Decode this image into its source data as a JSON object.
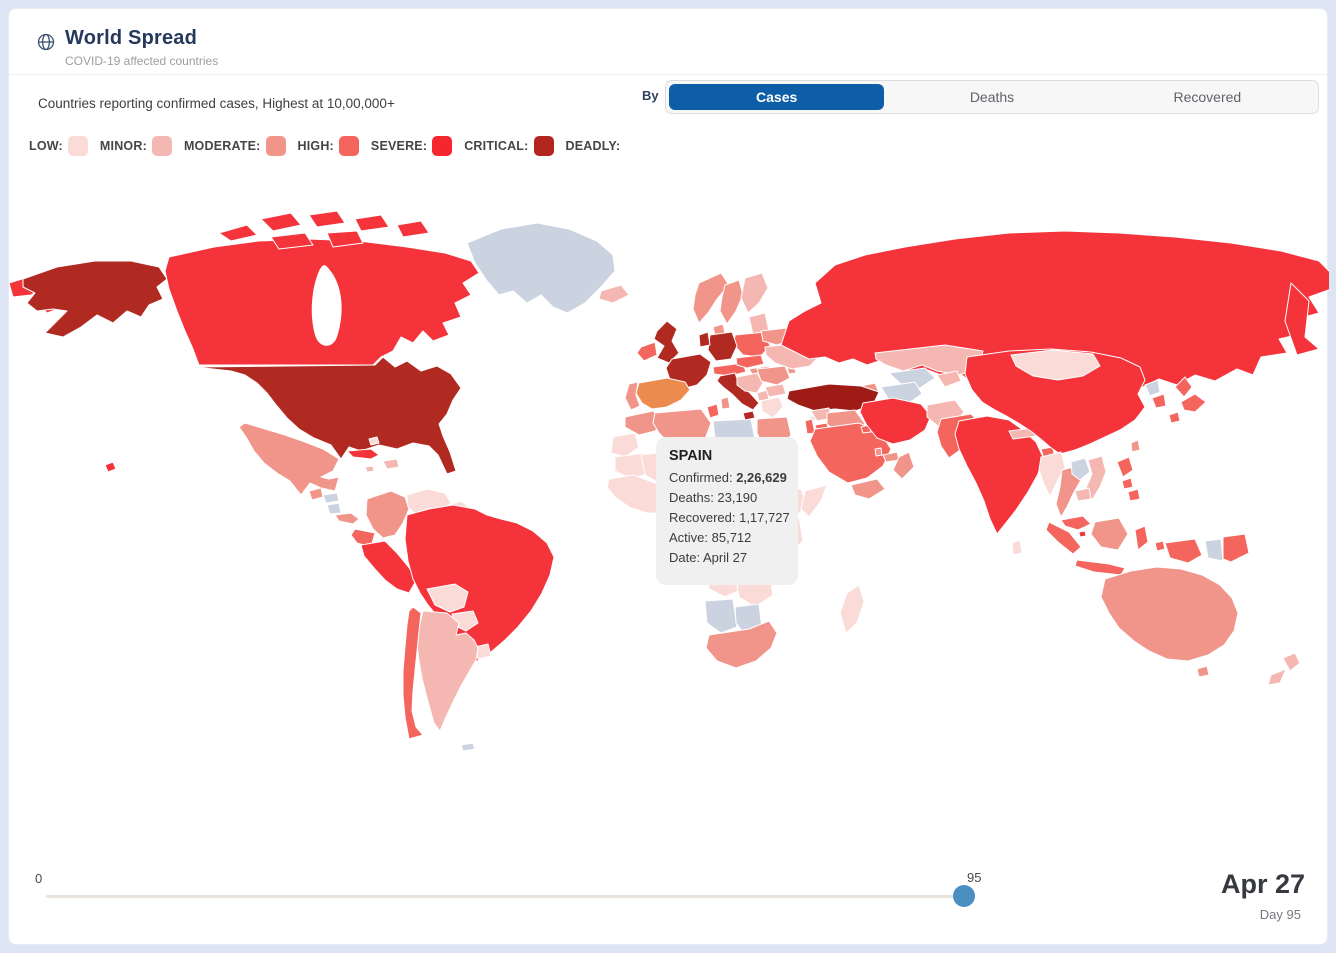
{
  "header": {
    "title": "World Spread",
    "subtitle": "COVID-19 affected countries",
    "icon": "globe-icon"
  },
  "caption": "Countries reporting confirmed cases, Highest at 10,00,000+",
  "controls": {
    "by_label": "By",
    "active_tab_color": "#0d5ea6",
    "tabs": [
      {
        "id": "cases",
        "label": "Cases",
        "active": true
      },
      {
        "id": "deaths",
        "label": "Deaths",
        "active": false
      },
      {
        "id": "recovered",
        "label": "Recovered",
        "active": false
      }
    ]
  },
  "legend": [
    {
      "label": "LOW:",
      "color": "#fadbd8"
    },
    {
      "label": "MINOR:",
      "color": "#f5b7b1"
    },
    {
      "label": "MODERATE:",
      "color": "#f1948a"
    },
    {
      "label": "HIGH:",
      "color": "#f4655e"
    },
    {
      "label": "SEVERE:",
      "color": "#f5262e"
    },
    {
      "label": "CRITICAL:",
      "color": "#b3261e"
    },
    {
      "label": "DEADLY:",
      "color": null
    }
  ],
  "tooltip": {
    "country": "SPAIN",
    "rows": [
      {
        "label": "Confirmed: ",
        "value": "2,26,629",
        "bold": true
      },
      {
        "label": "Deaths: ",
        "value": "23,190",
        "bold": false
      },
      {
        "label": "Recovered: ",
        "value": "1,17,727",
        "bold": false
      },
      {
        "label": "Active: ",
        "value": "85,712",
        "bold": false
      },
      {
        "label": "Date: ",
        "value": "April 27",
        "bold": false
      }
    ]
  },
  "timeline": {
    "start_label": "0",
    "value_label": "95",
    "thumb_color": "#4b8fc2",
    "date": "Apr 27",
    "day": "Day 95"
  },
  "map": {
    "ocean": "#ffffff",
    "level_colors": {
      "low": "#fadbd8",
      "minor": "#f5b7b1",
      "moderate": "#f1948a",
      "high": "#f4655e",
      "severe": "#f5333b",
      "critical": "#b12a22",
      "deadly": "#9e1b16",
      "nodata": "#ccd3e0"
    },
    "highlight": {
      "country": "spain",
      "fill": "#ec8b4e",
      "stroke": "#7ab5da"
    },
    "countries": {
      "chukotka-a": "severe",
      "chukotka-b": "severe",
      "alaska": "critical",
      "canada": "severe",
      "arctic-1": "severe",
      "arctic-2": "severe",
      "arctic-3": "severe",
      "arctic-4": "severe",
      "arctic-5": "severe",
      "arctic-6": "severe",
      "arctic-7": "severe",
      "greenland": "nodata",
      "iceland": "minor",
      "usa": "critical",
      "hawaii": "severe",
      "mexico": "moderate",
      "cuba": "severe",
      "hispaniola": "minor",
      "jamaica": "minor",
      "bahamas": "low",
      "guatemala": "moderate",
      "honduras": "nodata",
      "nicaragua": "nodata",
      "costa-panama": "moderate",
      "colombia": "moderate",
      "venezuela": "low",
      "guyana": "low",
      "suriname": "nodata",
      "ecuador": "high",
      "peru": "severe",
      "brazil": "severe",
      "bolivia": "low",
      "paraguay": "low",
      "uruguay": "low",
      "argentina": "minor",
      "chile": "high",
      "falklands": "nodata",
      "morocco": "moderate",
      "western-sahara": "low",
      "algeria": "moderate",
      "tunisia": "high",
      "libya": "nodata",
      "egypt": "moderate",
      "mauritania": "low",
      "mali": "low",
      "niger": "low",
      "chad": "low",
      "sudan": "low",
      "west-africa": "low",
      "nigeria": "low",
      "central-africa": "low",
      "ethiopia": "low",
      "somalia": "low",
      "kenya-tanzania": "low",
      "drc": "low",
      "angola": "low",
      "zambia-zimbabwe": "low",
      "namibia": "nodata",
      "botswana": "nodata",
      "south-africa": "moderate",
      "madagascar": "low",
      "uk": "critical",
      "ireland": "high",
      "norway": "moderate",
      "sweden": "moderate",
      "finland": "minor",
      "denmark": "moderate",
      "baltics": "minor",
      "poland": "high",
      "germany": "critical",
      "benelux": "critical",
      "france": "critical",
      "swiss-austria": "high",
      "czech-slovakia": "high",
      "hungary": "moderate",
      "italy": "critical",
      "sicily": "critical",
      "sardinia": "moderate",
      "spain": "highlight",
      "portugal": "moderate",
      "balkans": "minor",
      "albania-mk": "minor",
      "greece": "low",
      "bulgaria": "minor",
      "romania": "moderate",
      "moldova": "moderate",
      "ukraine": "minor",
      "belarus": "moderate",
      "russia": "severe",
      "kamchatka": "severe",
      "kazakhstan": "minor",
      "uzbekistan": "nodata",
      "turkmenistan": "nodata",
      "kyrgyz-tajik": "minor",
      "caucasus": "moderate",
      "turkey": "deadly",
      "cyprus": "low",
      "syria": "minor",
      "lebanon-israel": "high",
      "jordan": "high",
      "iraq": "moderate",
      "saudi-arabia": "high",
      "kuwait": "high",
      "qatar": "moderate",
      "uae": "moderate",
      "oman": "moderate",
      "yemen": "moderate",
      "iran": "severe",
      "afghanistan": "minor",
      "pakistan": "high",
      "india": "severe",
      "sri-lanka": "low",
      "nepal": "minor",
      "bhutan": "minor",
      "bangladesh": "high",
      "china": "severe",
      "mongolia": "low",
      "north-korea": "nodata",
      "south-korea": "high",
      "japan-hokkaido": "high",
      "japan-honshu": "high",
      "japan-kyushu": "high",
      "taiwan": "moderate",
      "myanmar": "low",
      "thailand": "moderate",
      "laos": "nodata",
      "vietnam": "minor",
      "cambodia": "minor",
      "malaysia": "high",
      "singapore": "severe",
      "philippines-1": "high",
      "philippines-2": "high",
      "philippines-3": "high",
      "sumatra": "high",
      "java": "high",
      "borneo": "moderate",
      "sulawesi": "high",
      "moluccas": "high",
      "west-papua": "high",
      "png-west": "nodata",
      "png-east": "high",
      "australia": "moderate",
      "tasmania": "moderate",
      "nz-north": "minor",
      "nz-south": "minor"
    }
  }
}
